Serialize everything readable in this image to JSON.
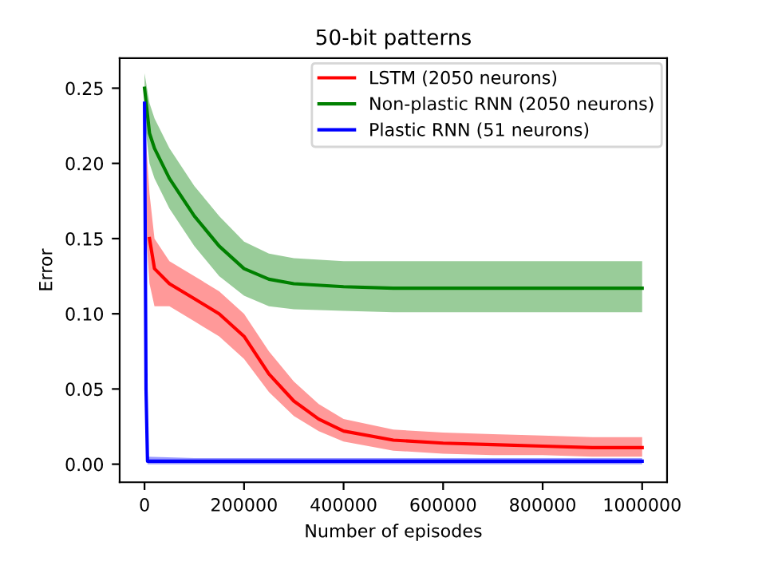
{
  "chart_data": {
    "type": "line",
    "title": "50-bit patterns",
    "xlabel": "Number of episodes",
    "ylabel": "Error",
    "xlim": [
      -50000,
      1050000
    ],
    "xticks": [
      0,
      200000,
      400000,
      600000,
      800000,
      1000000
    ],
    "ylim": [
      -0.012,
      0.27
    ],
    "yticks": [
      {
        "value": 0,
        "label": "0.00"
      },
      {
        "value": 0.05,
        "label": "0.05"
      },
      {
        "value": 0.1,
        "label": "0.10"
      },
      {
        "value": 0.15,
        "label": "0.15"
      },
      {
        "value": 0.2,
        "label": "0.20"
      },
      {
        "value": 0.25,
        "label": "0.25"
      }
    ],
    "grid": false,
    "legend": "top right",
    "series": [
      {
        "name": "LSTM (2050 neurons)",
        "color": "#ff0000",
        "x": [
          0,
          10000,
          20000,
          50000,
          100000,
          150000,
          200000,
          250000,
          300000,
          350000,
          400000,
          500000,
          600000,
          700000,
          800000,
          900000,
          1000000
        ],
        "values": [
          null,
          0.15,
          0.13,
          0.12,
          0.11,
          0.1,
          0.085,
          0.06,
          0.042,
          0.03,
          0.022,
          0.016,
          0.014,
          0.013,
          0.012,
          0.011,
          0.011
        ],
        "lower": [
          0.17,
          0.12,
          0.105,
          0.105,
          0.095,
          0.085,
          0.07,
          0.048,
          0.032,
          0.022,
          0.015,
          0.009,
          0.007,
          0.006,
          0.006,
          0.005,
          0.005
        ],
        "upper": [
          0.23,
          0.18,
          0.15,
          0.135,
          0.125,
          0.115,
          0.1,
          0.075,
          0.055,
          0.04,
          0.03,
          0.023,
          0.021,
          0.02,
          0.019,
          0.018,
          0.018
        ]
      },
      {
        "name": "Non-plastic RNN (2050 neurons)",
        "color": "#008000",
        "x": [
          0,
          10000,
          20000,
          50000,
          100000,
          150000,
          200000,
          250000,
          300000,
          400000,
          500000,
          600000,
          700000,
          800000,
          900000,
          1000000
        ],
        "values": [
          0.25,
          0.22,
          0.21,
          0.19,
          0.165,
          0.145,
          0.13,
          0.123,
          0.12,
          0.118,
          0.117,
          0.117,
          0.117,
          0.117,
          0.117,
          0.117
        ],
        "lower": [
          0.23,
          0.2,
          0.19,
          0.17,
          0.145,
          0.125,
          0.112,
          0.105,
          0.103,
          0.102,
          0.101,
          0.101,
          0.101,
          0.101,
          0.101,
          0.101
        ],
        "upper": [
          0.26,
          0.24,
          0.23,
          0.21,
          0.185,
          0.165,
          0.148,
          0.14,
          0.137,
          0.135,
          0.135,
          0.135,
          0.135,
          0.135,
          0.135,
          0.135
        ]
      },
      {
        "name": "Plastic RNN (51 neurons)",
        "color": "#0000ff",
        "x": [
          0,
          3000,
          6000,
          100000,
          300000,
          500000,
          700000,
          900000,
          1000000
        ],
        "values": [
          0.24,
          0.05,
          0.002,
          0.002,
          0.002,
          0.002,
          0.002,
          0.002,
          0.002
        ],
        "lower": [
          0.22,
          0.03,
          0.0,
          0.0,
          0.0,
          0.0,
          0.0,
          0.0,
          0.0
        ],
        "upper": [
          0.25,
          0.07,
          0.005,
          0.004,
          0.004,
          0.004,
          0.004,
          0.004,
          0.004
        ]
      }
    ]
  }
}
